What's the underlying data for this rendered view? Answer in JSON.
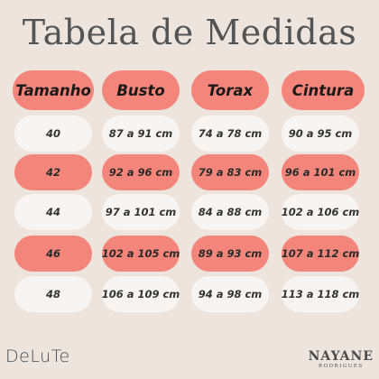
{
  "title": "Tabela de Medidas",
  "headers": [
    "Tamanho",
    "Busto",
    "Torax",
    "Cintura"
  ],
  "rows": [
    [
      "40",
      "87 a 91 cm",
      "74 a 78 cm",
      "90 a 95 cm"
    ],
    [
      "42",
      "92 a 96 cm",
      "79 a 83 cm",
      "96 a 101 cm"
    ],
    [
      "44",
      "97 a 101 cm",
      "84 a 88 cm",
      "102 a 106 cm"
    ],
    [
      "46",
      "102 a 105 cm",
      "89 a 93 cm",
      "107 a 112 cm"
    ],
    [
      "48",
      "106 a 109 cm",
      "94 a 98 cm",
      "113 a 118 cm"
    ]
  ],
  "logos": {
    "left": "DeLuTe",
    "right_name": "NAYANE",
    "right_sub": "RODRIGUES"
  },
  "colors": {
    "background": "#ede4dd",
    "coral": "#f4857a",
    "light": "#f8f4f1",
    "text": "#545454"
  }
}
